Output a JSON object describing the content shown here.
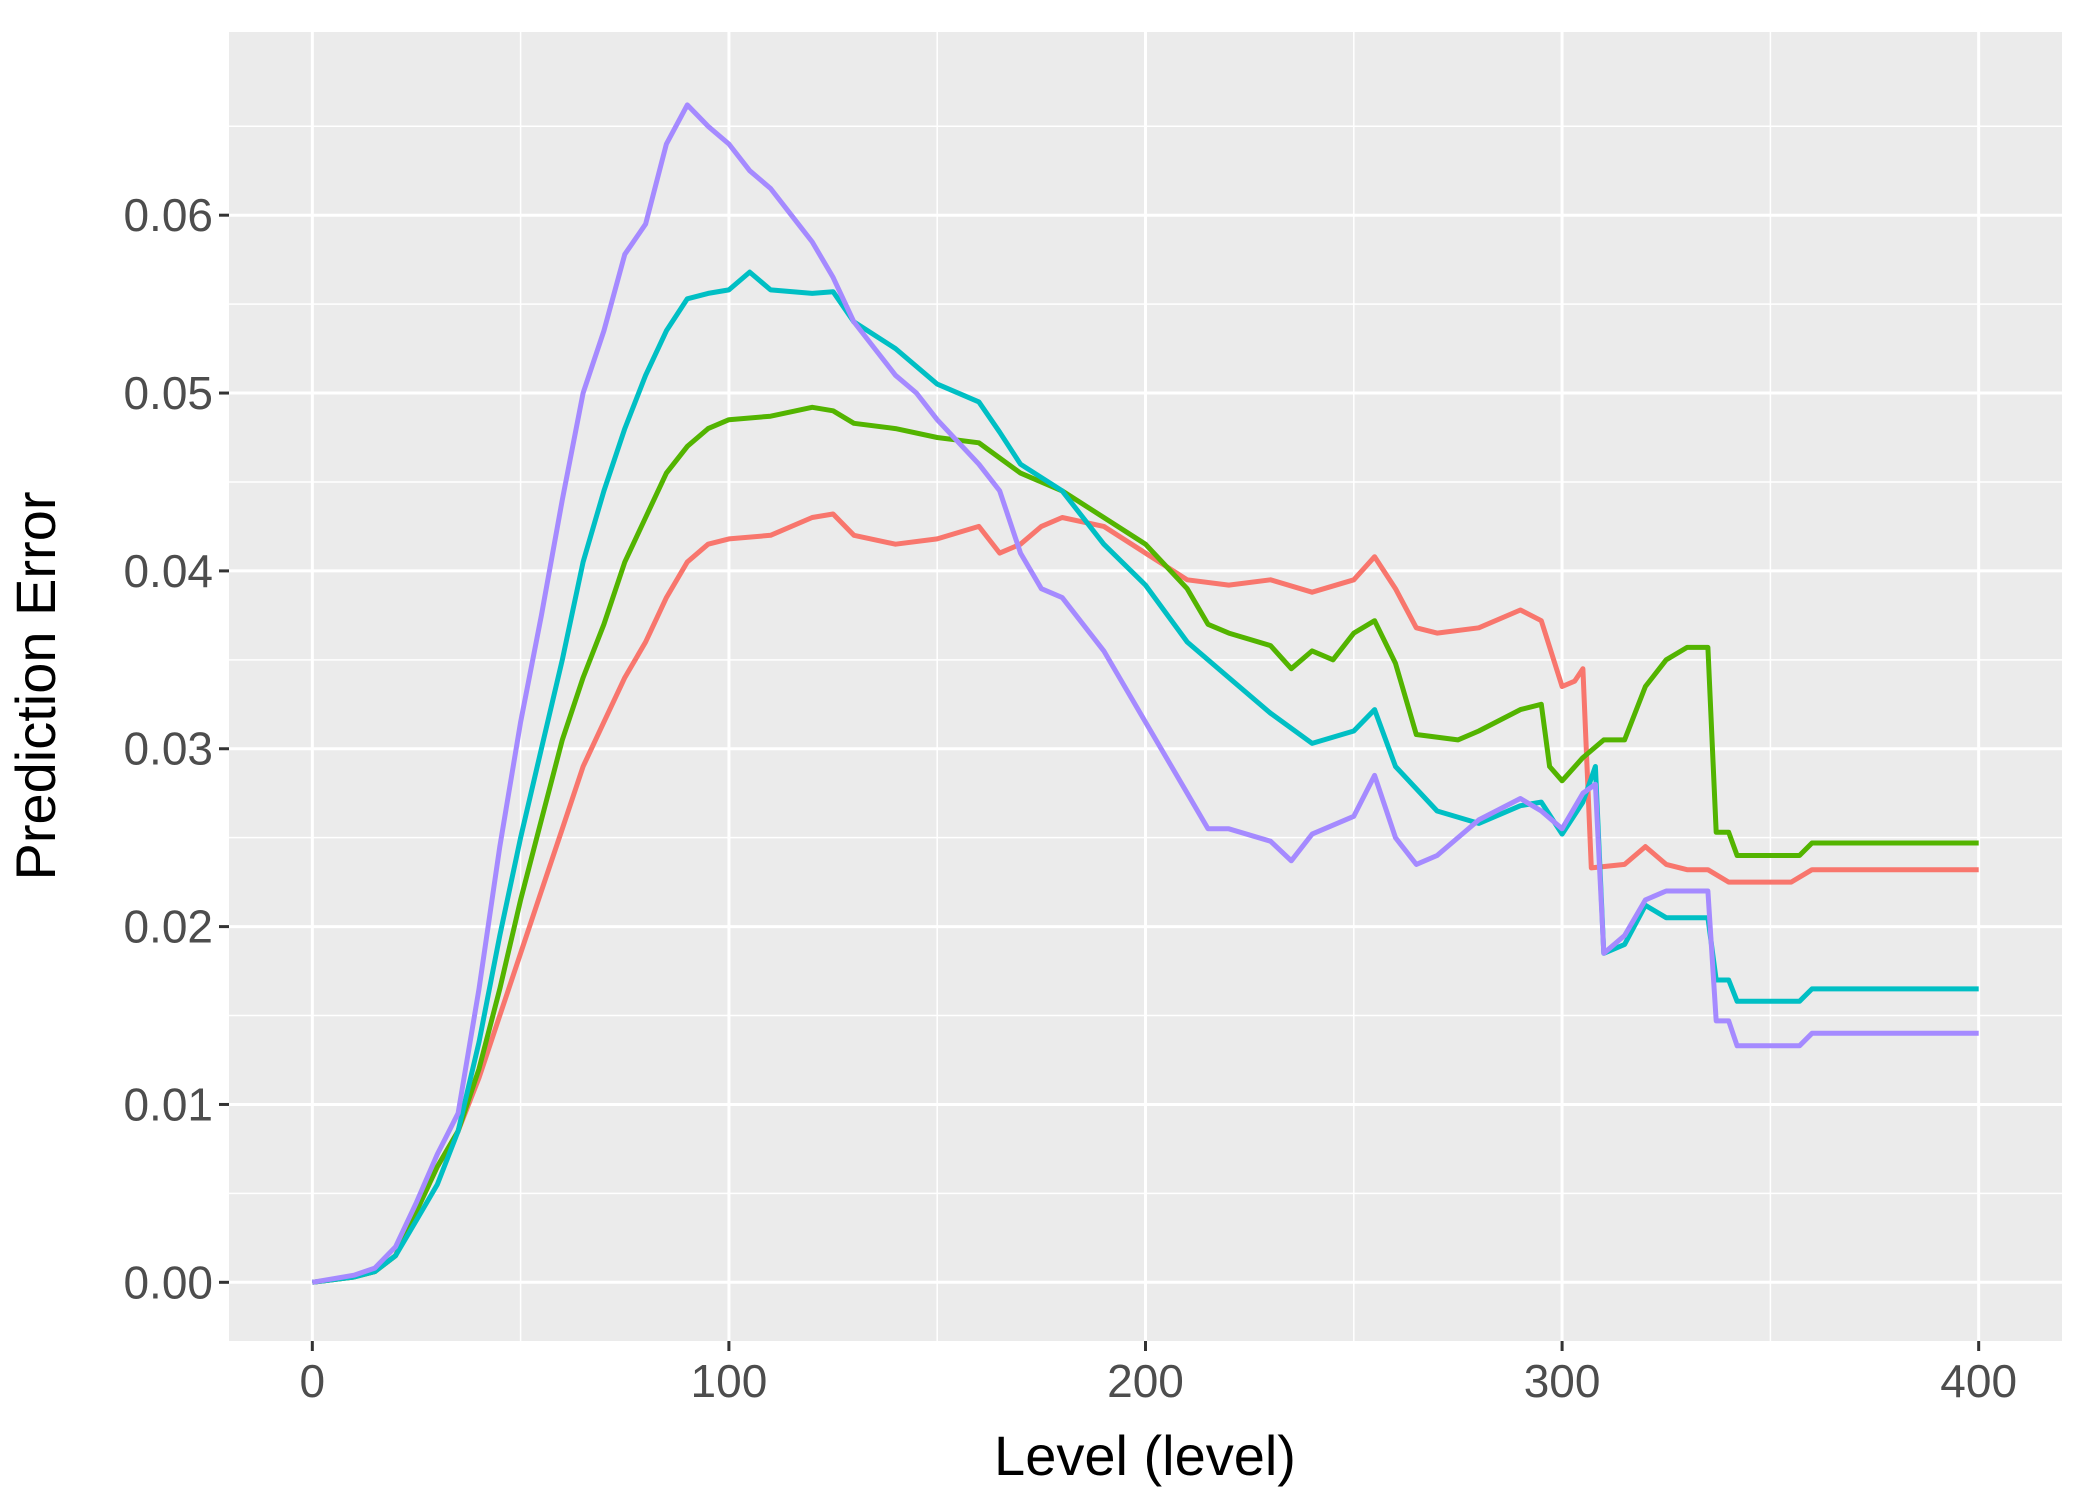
{
  "chart_data": {
    "type": "line",
    "title": "",
    "xlabel": "Level (level)",
    "ylabel": "Prediction Error",
    "xlim": [
      -20,
      420
    ],
    "ylim": [
      -0.0033,
      0.0703
    ],
    "xticks": [
      0,
      100,
      200,
      300,
      400
    ],
    "xtick_labels": [
      "0",
      "100",
      "200",
      "300",
      "400"
    ],
    "yticks": [
      0.0,
      0.01,
      0.02,
      0.03,
      0.04,
      0.05,
      0.06
    ],
    "ytick_labels": [
      "0.00",
      "0.01",
      "0.02",
      "0.03",
      "0.04",
      "0.05",
      "0.06"
    ],
    "grid": true,
    "legend": "none",
    "background": "#ebebeb",
    "series": [
      {
        "color": "#f8766d",
        "points": [
          [
            0,
            0
          ],
          [
            10,
            0.0003
          ],
          [
            15,
            0.0006
          ],
          [
            20,
            0.0015
          ],
          [
            25,
            0.004
          ],
          [
            30,
            0.0065
          ],
          [
            35,
            0.0085
          ],
          [
            40,
            0.0115
          ],
          [
            45,
            0.015
          ],
          [
            50,
            0.0185
          ],
          [
            55,
            0.022
          ],
          [
            60,
            0.0255
          ],
          [
            65,
            0.029
          ],
          [
            70,
            0.0315
          ],
          [
            75,
            0.034
          ],
          [
            80,
            0.036
          ],
          [
            85,
            0.0385
          ],
          [
            90,
            0.0405
          ],
          [
            95,
            0.0415
          ],
          [
            100,
            0.0418
          ],
          [
            110,
            0.042
          ],
          [
            120,
            0.043
          ],
          [
            125,
            0.0432
          ],
          [
            130,
            0.042
          ],
          [
            140,
            0.0415
          ],
          [
            150,
            0.0418
          ],
          [
            160,
            0.0425
          ],
          [
            165,
            0.041
          ],
          [
            170,
            0.0415
          ],
          [
            175,
            0.0425
          ],
          [
            180,
            0.043
          ],
          [
            190,
            0.0425
          ],
          [
            200,
            0.041
          ],
          [
            210,
            0.0395
          ],
          [
            220,
            0.0392
          ],
          [
            230,
            0.0395
          ],
          [
            240,
            0.0388
          ],
          [
            250,
            0.0395
          ],
          [
            255,
            0.0408
          ],
          [
            260,
            0.039
          ],
          [
            265,
            0.0368
          ],
          [
            270,
            0.0365
          ],
          [
            280,
            0.0368
          ],
          [
            290,
            0.0378
          ],
          [
            295,
            0.0372
          ],
          [
            300,
            0.0335
          ],
          [
            303,
            0.0338
          ],
          [
            305,
            0.0345
          ],
          [
            307,
            0.0233
          ],
          [
            315,
            0.0235
          ],
          [
            320,
            0.0245
          ],
          [
            325,
            0.0235
          ],
          [
            330,
            0.0232
          ],
          [
            335,
            0.0232
          ],
          [
            340,
            0.0225
          ],
          [
            355,
            0.0225
          ],
          [
            360,
            0.0232
          ],
          [
            400,
            0.0232
          ]
        ]
      },
      {
        "color": "#53b400",
        "points": [
          [
            0,
            0
          ],
          [
            10,
            0.0003
          ],
          [
            15,
            0.0006
          ],
          [
            20,
            0.0015
          ],
          [
            25,
            0.004
          ],
          [
            30,
            0.0065
          ],
          [
            35,
            0.0085
          ],
          [
            40,
            0.012
          ],
          [
            45,
            0.0165
          ],
          [
            50,
            0.0215
          ],
          [
            55,
            0.026
          ],
          [
            60,
            0.0305
          ],
          [
            65,
            0.034
          ],
          [
            70,
            0.037
          ],
          [
            75,
            0.0405
          ],
          [
            80,
            0.043
          ],
          [
            85,
            0.0455
          ],
          [
            90,
            0.047
          ],
          [
            95,
            0.048
          ],
          [
            100,
            0.0485
          ],
          [
            110,
            0.0487
          ],
          [
            120,
            0.0492
          ],
          [
            125,
            0.049
          ],
          [
            130,
            0.0483
          ],
          [
            140,
            0.048
          ],
          [
            150,
            0.0475
          ],
          [
            160,
            0.0472
          ],
          [
            170,
            0.0455
          ],
          [
            180,
            0.0445
          ],
          [
            190,
            0.043
          ],
          [
            200,
            0.0415
          ],
          [
            210,
            0.039
          ],
          [
            215,
            0.037
          ],
          [
            220,
            0.0365
          ],
          [
            230,
            0.0358
          ],
          [
            235,
            0.0345
          ],
          [
            240,
            0.0355
          ],
          [
            245,
            0.035
          ],
          [
            250,
            0.0365
          ],
          [
            255,
            0.0372
          ],
          [
            260,
            0.0348
          ],
          [
            265,
            0.0308
          ],
          [
            275,
            0.0305
          ],
          [
            280,
            0.031
          ],
          [
            290,
            0.0322
          ],
          [
            295,
            0.0325
          ],
          [
            297,
            0.029
          ],
          [
            300,
            0.0282
          ],
          [
            305,
            0.0295
          ],
          [
            310,
            0.0305
          ],
          [
            315,
            0.0305
          ],
          [
            320,
            0.0335
          ],
          [
            325,
            0.035
          ],
          [
            330,
            0.0357
          ],
          [
            335,
            0.0357
          ],
          [
            337,
            0.0253
          ],
          [
            340,
            0.0253
          ],
          [
            342,
            0.024
          ],
          [
            357,
            0.024
          ],
          [
            360,
            0.0247
          ],
          [
            400,
            0.0247
          ]
        ]
      },
      {
        "color": "#00bfc4",
        "points": [
          [
            0,
            0
          ],
          [
            10,
            0.0003
          ],
          [
            15,
            0.0006
          ],
          [
            20,
            0.0015
          ],
          [
            25,
            0.0035
          ],
          [
            30,
            0.0055
          ],
          [
            35,
            0.0085
          ],
          [
            40,
            0.0135
          ],
          [
            45,
            0.0195
          ],
          [
            50,
            0.025
          ],
          [
            55,
            0.03
          ],
          [
            60,
            0.035
          ],
          [
            65,
            0.0405
          ],
          [
            70,
            0.0445
          ],
          [
            75,
            0.048
          ],
          [
            80,
            0.051
          ],
          [
            85,
            0.0535
          ],
          [
            90,
            0.0553
          ],
          [
            95,
            0.0556
          ],
          [
            100,
            0.0558
          ],
          [
            105,
            0.0568
          ],
          [
            110,
            0.0558
          ],
          [
            120,
            0.0556
          ],
          [
            125,
            0.0557
          ],
          [
            130,
            0.054
          ],
          [
            140,
            0.0525
          ],
          [
            150,
            0.0505
          ],
          [
            160,
            0.0495
          ],
          [
            165,
            0.0478
          ],
          [
            170,
            0.046
          ],
          [
            180,
            0.0445
          ],
          [
            190,
            0.0415
          ],
          [
            200,
            0.0392
          ],
          [
            210,
            0.036
          ],
          [
            220,
            0.034
          ],
          [
            230,
            0.032
          ],
          [
            240,
            0.0303
          ],
          [
            250,
            0.031
          ],
          [
            255,
            0.0322
          ],
          [
            260,
            0.029
          ],
          [
            270,
            0.0265
          ],
          [
            280,
            0.0258
          ],
          [
            290,
            0.0268
          ],
          [
            295,
            0.027
          ],
          [
            300,
            0.0252
          ],
          [
            305,
            0.027
          ],
          [
            308,
            0.029
          ],
          [
            310,
            0.0185
          ],
          [
            315,
            0.019
          ],
          [
            320,
            0.0212
          ],
          [
            325,
            0.0205
          ],
          [
            330,
            0.0205
          ],
          [
            335,
            0.0205
          ],
          [
            337,
            0.017
          ],
          [
            340,
            0.017
          ],
          [
            342,
            0.0158
          ],
          [
            357,
            0.0158
          ],
          [
            360,
            0.0165
          ],
          [
            400,
            0.0165
          ]
        ]
      },
      {
        "color": "#a58aff",
        "points": [
          [
            0,
            0
          ],
          [
            10,
            0.0004
          ],
          [
            15,
            0.0008
          ],
          [
            20,
            0.002
          ],
          [
            25,
            0.0045
          ],
          [
            30,
            0.0072
          ],
          [
            35,
            0.0095
          ],
          [
            40,
            0.0165
          ],
          [
            45,
            0.0245
          ],
          [
            50,
            0.0315
          ],
          [
            55,
            0.0375
          ],
          [
            60,
            0.044
          ],
          [
            65,
            0.05
          ],
          [
            70,
            0.0535
          ],
          [
            75,
            0.0578
          ],
          [
            80,
            0.0595
          ],
          [
            85,
            0.064
          ],
          [
            90,
            0.0662
          ],
          [
            95,
            0.065
          ],
          [
            100,
            0.064
          ],
          [
            105,
            0.0625
          ],
          [
            110,
            0.0615
          ],
          [
            115,
            0.06
          ],
          [
            120,
            0.0585
          ],
          [
            125,
            0.0565
          ],
          [
            130,
            0.054
          ],
          [
            135,
            0.0525
          ],
          [
            140,
            0.051
          ],
          [
            145,
            0.05
          ],
          [
            150,
            0.0485
          ],
          [
            160,
            0.046
          ],
          [
            165,
            0.0445
          ],
          [
            170,
            0.041
          ],
          [
            175,
            0.039
          ],
          [
            180,
            0.0385
          ],
          [
            190,
            0.0355
          ],
          [
            200,
            0.0315
          ],
          [
            210,
            0.0275
          ],
          [
            215,
            0.0255
          ],
          [
            220,
            0.0255
          ],
          [
            230,
            0.0248
          ],
          [
            235,
            0.0237
          ],
          [
            240,
            0.0252
          ],
          [
            250,
            0.0262
          ],
          [
            255,
            0.0285
          ],
          [
            260,
            0.025
          ],
          [
            265,
            0.0235
          ],
          [
            270,
            0.024
          ],
          [
            280,
            0.026
          ],
          [
            290,
            0.0272
          ],
          [
            295,
            0.0265
          ],
          [
            300,
            0.0255
          ],
          [
            305,
            0.0275
          ],
          [
            308,
            0.028
          ],
          [
            310,
            0.0185
          ],
          [
            315,
            0.0195
          ],
          [
            320,
            0.0215
          ],
          [
            325,
            0.022
          ],
          [
            330,
            0.022
          ],
          [
            335,
            0.022
          ],
          [
            337,
            0.0147
          ],
          [
            340,
            0.0147
          ],
          [
            342,
            0.0133
          ],
          [
            357,
            0.0133
          ],
          [
            360,
            0.014
          ],
          [
            400,
            0.014
          ]
        ]
      }
    ]
  }
}
